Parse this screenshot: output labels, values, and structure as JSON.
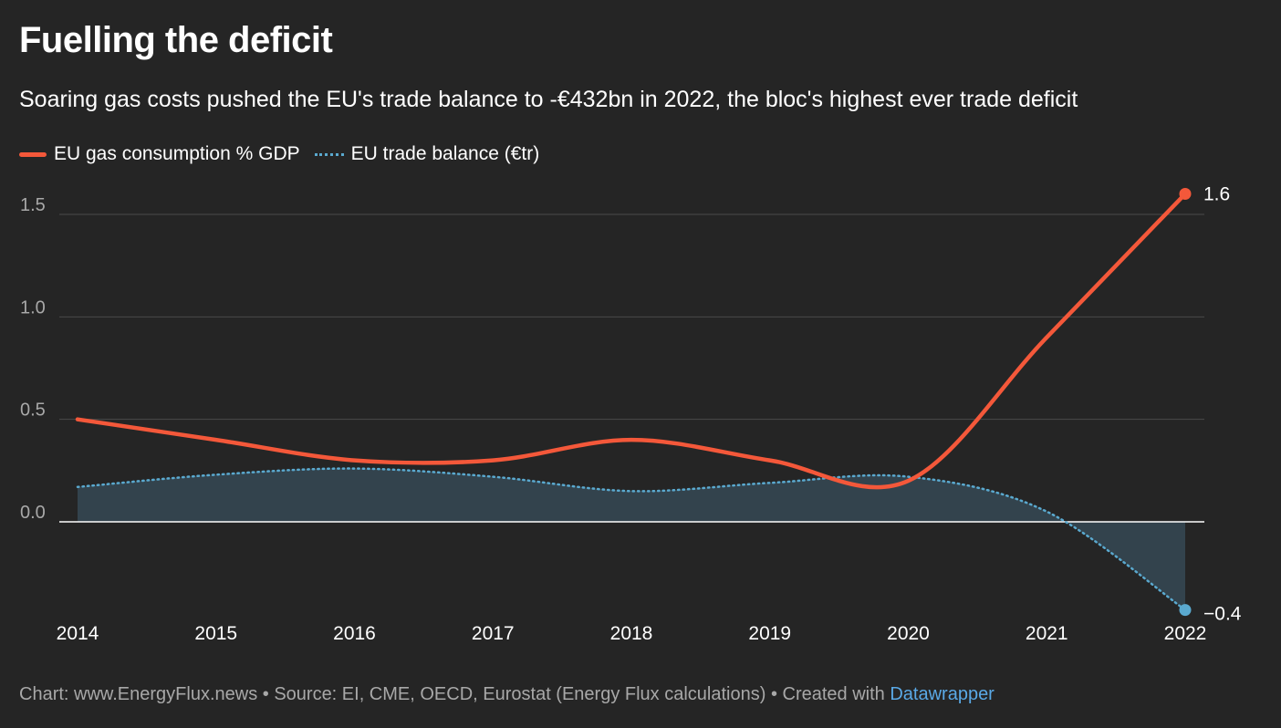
{
  "header": {
    "title": "Fuelling the deficit",
    "subtitle": "Soaring gas costs pushed the EU's trade balance to -€432bn in 2022, the bloc's highest ever trade deficit"
  },
  "footer": {
    "prefix": "Chart: www.EnergyFlux.news • Source: EI, CME, OECD, Eurostat (Energy Flux calculations) • Created with ",
    "link": "Datawrapper"
  },
  "chart_data": {
    "type": "line",
    "x": [
      "2014",
      "2015",
      "2016",
      "2017",
      "2018",
      "2019",
      "2020",
      "2021",
      "2022"
    ],
    "ylim": [
      -0.43,
      1.65
    ],
    "yticks": [
      0.0,
      0.5,
      1.0,
      1.5
    ],
    "ytick_labels": [
      "0.0",
      "0.5",
      "1.0",
      "1.5"
    ],
    "grid": true,
    "legend_position": "top-left",
    "series": [
      {
        "name": "EU gas consumption % GDP",
        "style": "solid",
        "color": "#f4583a",
        "values": [
          0.5,
          0.4,
          0.3,
          0.3,
          0.4,
          0.3,
          0.2,
          0.9,
          1.6
        ],
        "end_label": "1.6"
      },
      {
        "name": "EU trade balance (€tr)",
        "style": "dotted",
        "color": "#5aa9cf",
        "area_color": "#33434d",
        "values": [
          0.17,
          0.23,
          0.26,
          0.22,
          0.15,
          0.19,
          0.22,
          0.05,
          -0.43
        ],
        "end_label": "−0.4"
      }
    ]
  }
}
